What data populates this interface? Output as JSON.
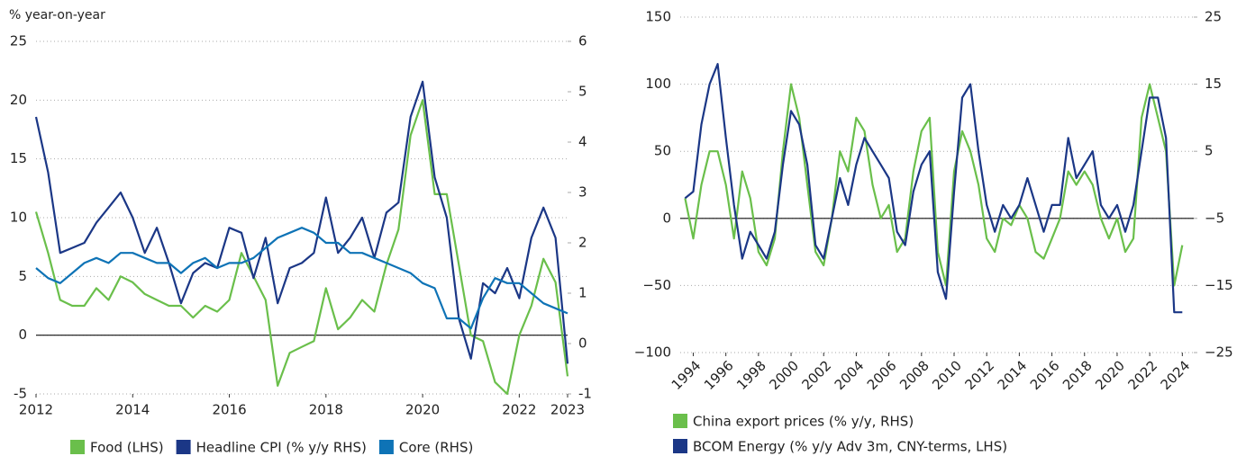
{
  "chart_data": [
    {
      "type": "line",
      "y_label": "% year-on-year",
      "x": [
        2012,
        2012.25,
        2012.5,
        2012.75,
        2013,
        2013.25,
        2013.5,
        2013.75,
        2014,
        2014.25,
        2014.5,
        2014.75,
        2015,
        2015.25,
        2015.5,
        2015.75,
        2016,
        2016.25,
        2016.5,
        2016.75,
        2017,
        2017.25,
        2017.5,
        2017.75,
        2018,
        2018.25,
        2018.5,
        2018.75,
        2019,
        2019.25,
        2019.5,
        2019.75,
        2020,
        2020.25,
        2020.5,
        2020.75,
        2021,
        2021.25,
        2021.5,
        2021.75,
        2022,
        2022.25,
        2022.5,
        2022.75,
        2023
      ],
      "xlim": [
        2012,
        2023
      ],
      "xticks": [
        2012,
        2014,
        2016,
        2018,
        2020,
        2022,
        2023
      ],
      "ylim": [
        -5,
        25
      ],
      "yticks": [
        -5,
        0,
        5,
        10,
        15,
        20,
        25
      ],
      "y2lim": [
        -1,
        6
      ],
      "y2ticks": [
        -1,
        0,
        1,
        2,
        3,
        4,
        5,
        6
      ],
      "grid": true,
      "legend": "bottom",
      "series": [
        {
          "name": "Food (LHS)",
          "color": "#6abf4b",
          "values": [
            10.5,
            7,
            3,
            2.5,
            2.5,
            4,
            3,
            5,
            4.5,
            3.5,
            3,
            2.5,
            2.5,
            1.5,
            2.5,
            2,
            3,
            7,
            5,
            3,
            -4.3,
            -1.5,
            -1,
            -0.5,
            4,
            0.5,
            1.5,
            3,
            2,
            6,
            9,
            17,
            20,
            12,
            12,
            6,
            0,
            -0.5,
            -4,
            -5,
            0,
            2.5,
            6.5,
            4.5,
            -3.5
          ]
        },
        {
          "name": "Headline CPI (% y/y RHS)",
          "color": "#1b3786",
          "axis": "y2",
          "values": [
            4.5,
            3.4,
            1.8,
            1.9,
            2.0,
            2.4,
            2.7,
            3.0,
            2.5,
            1.8,
            2.3,
            1.6,
            0.8,
            1.4,
            1.6,
            1.5,
            2.3,
            2.2,
            1.3,
            2.1,
            0.8,
            1.5,
            1.6,
            1.8,
            2.9,
            1.8,
            2.1,
            2.5,
            1.7,
            2.6,
            2.8,
            4.5,
            5.2,
            3.3,
            2.5,
            0.5,
            -0.3,
            1.2,
            1.0,
            1.5,
            0.9,
            2.1,
            2.7,
            2.1,
            -0.4
          ]
        },
        {
          "name": "Core (RHS)",
          "color": "#0e73b6",
          "axis": "y2",
          "values": [
            1.5,
            1.3,
            1.2,
            1.4,
            1.6,
            1.7,
            1.6,
            1.8,
            1.8,
            1.7,
            1.6,
            1.6,
            1.4,
            1.6,
            1.7,
            1.5,
            1.6,
            1.6,
            1.7,
            1.9,
            2.1,
            2.2,
            2.3,
            2.2,
            2.0,
            2.0,
            1.8,
            1.8,
            1.7,
            1.6,
            1.5,
            1.4,
            1.2,
            1.1,
            0.5,
            0.5,
            0.3,
            0.9,
            1.3,
            1.2,
            1.2,
            1.0,
            0.8,
            0.7,
            0.6
          ]
        }
      ]
    },
    {
      "type": "line",
      "x": [
        1993.5,
        1994,
        1994.5,
        1995,
        1995.5,
        1996,
        1996.5,
        1997,
        1997.5,
        1998,
        1998.5,
        1999,
        1999.5,
        2000,
        2000.5,
        2001,
        2001.5,
        2002,
        2002.5,
        2003,
        2003.5,
        2004,
        2004.5,
        2005,
        2005.5,
        2006,
        2006.5,
        2007,
        2007.5,
        2008,
        2008.5,
        2009,
        2009.5,
        2010,
        2010.5,
        2011,
        2011.5,
        2012,
        2012.5,
        2013,
        2013.5,
        2014,
        2014.5,
        2015,
        2015.5,
        2016,
        2016.5,
        2017,
        2017.5,
        2018,
        2018.5,
        2019,
        2019.5,
        2020,
        2020.5,
        2021,
        2021.5,
        2022,
        2022.5,
        2023,
        2023.5,
        2024
      ],
      "xlim": [
        1993.2,
        2024.7
      ],
      "xticks": [
        1994,
        1996,
        1998,
        2000,
        2002,
        2004,
        2006,
        2008,
        2010,
        2012,
        2014,
        2016,
        2018,
        2020,
        2022,
        2024
      ],
      "ylim": [
        -100,
        150
      ],
      "yticks": [
        {
          "value": -100,
          "label": "−100"
        },
        {
          "value": -50,
          "label": "−50"
        },
        0,
        50,
        100,
        150
      ],
      "y2lim": [
        -25,
        25
      ],
      "y2ticks": [
        {
          "value": -25,
          "label": "−25"
        },
        {
          "value": -15,
          "label": "−15"
        },
        {
          "value": -5,
          "label": "−5"
        },
        5,
        15,
        25
      ],
      "grid": true,
      "legend": "bottom",
      "series": [
        {
          "name": "China export prices (% y/y, RHS)",
          "color": "#6abf4b",
          "axis": "y2",
          "values": [
            -2,
            -8,
            0,
            5,
            5,
            0,
            -8,
            2,
            -2,
            -10,
            -12,
            -8,
            5,
            15,
            10,
            0,
            -10,
            -12,
            -5,
            5,
            2,
            10,
            8,
            0,
            -5,
            -3,
            -10,
            -8,
            2,
            8,
            10,
            -10,
            -15,
            2,
            8,
            5,
            0,
            -8,
            -10,
            -5,
            -6,
            -3,
            -5,
            -10,
            -11,
            -8,
            -5,
            2,
            0,
            2,
            0,
            -5,
            -8,
            -5,
            -10,
            -8,
            10,
            15,
            10,
            5,
            -15,
            -9
          ]
        },
        {
          "name": "BCOM Energy (% y/y Adv 3m, CNY-terms, LHS)",
          "color": "#1b3786",
          "values": [
            15,
            20,
            70,
            100,
            115,
            60,
            10,
            -30,
            -10,
            -20,
            -30,
            -10,
            40,
            80,
            70,
            40,
            -20,
            -30,
            0,
            30,
            10,
            40,
            60,
            50,
            40,
            30,
            -10,
            -20,
            20,
            40,
            50,
            -40,
            -60,
            20,
            90,
            100,
            50,
            10,
            -10,
            10,
            0,
            10,
            30,
            10,
            -10,
            10,
            10,
            60,
            30,
            40,
            50,
            10,
            0,
            10,
            -10,
            10,
            50,
            90,
            90,
            60,
            -70,
            -70
          ]
        }
      ]
    }
  ]
}
